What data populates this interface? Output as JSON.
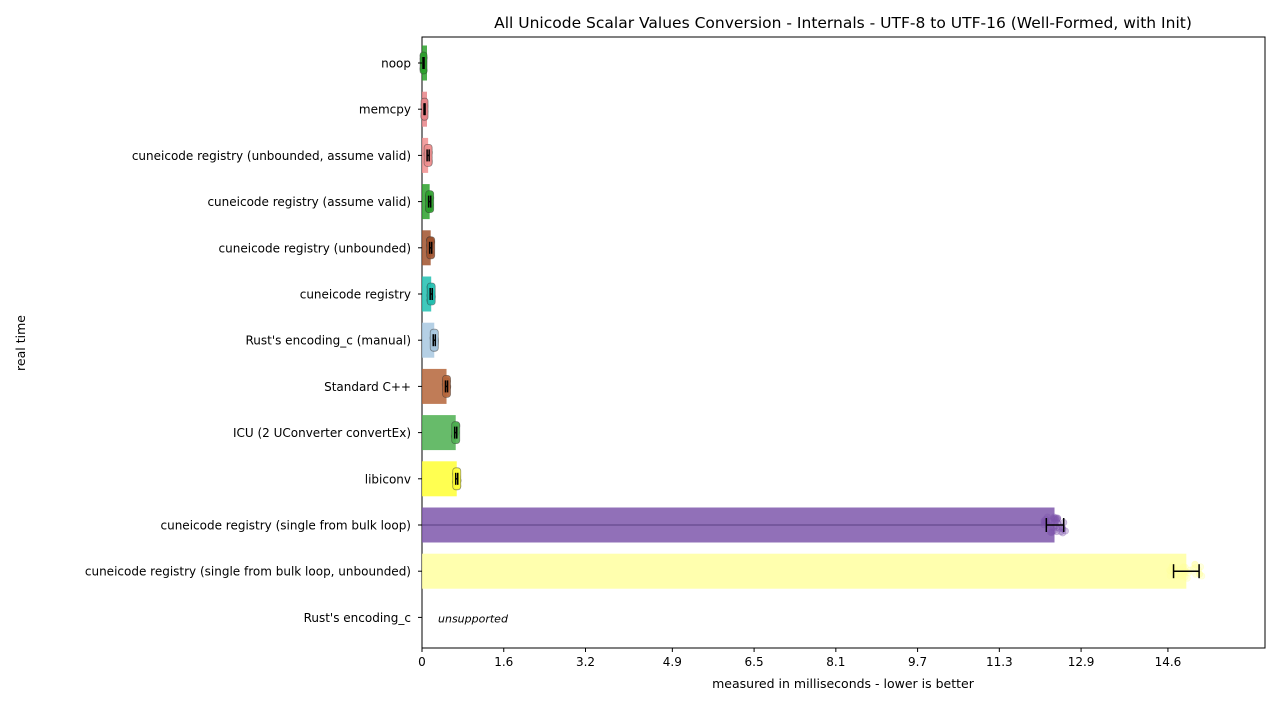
{
  "chart_data": {
    "type": "bar",
    "orientation": "horizontal",
    "title": "All Unicode Scalar Values Conversion - Internals - UTF-8 to UTF-16 (Well-Formed, with Init)",
    "xlabel": "measured in milliseconds - lower is better",
    "ylabel": "real time",
    "xlim": [
      0,
      16.5
    ],
    "xticks": [
      0,
      1.6,
      3.2,
      4.9,
      6.5,
      8.1,
      9.7,
      11.3,
      12.9,
      14.6
    ],
    "xtick_labels": [
      "0",
      "1.6",
      "3.2",
      "4.9",
      "6.5",
      "8.1",
      "9.7",
      "11.3",
      "12.9",
      "14.6"
    ],
    "grid": false,
    "unsupported_label": "unsupported",
    "categories": [
      "noop",
      "memcpy",
      "cuneicode registry (unbounded, assume valid)",
      "cuneicode registry (assume valid)",
      "cuneicode registry (unbounded)",
      "cuneicode registry",
      "Rust's encoding_c (manual)",
      "Standard C++",
      "ICU (2 UConverter convertEx)",
      "libiconv",
      "cuneicode registry (single from bulk loop)",
      "cuneicode registry (single from bulk loop, unbounded)",
      "Rust's encoding_c"
    ],
    "values": [
      0.03,
      0.05,
      0.12,
      0.15,
      0.17,
      0.18,
      0.24,
      0.48,
      0.66,
      0.68,
      12.38,
      14.96,
      null
    ],
    "error_low": [
      0.02,
      0.04,
      0.1,
      0.13,
      0.15,
      0.16,
      0.22,
      0.46,
      0.64,
      0.66,
      12.22,
      14.71
    ],
    "error_high": [
      0.04,
      0.06,
      0.14,
      0.17,
      0.19,
      0.2,
      0.26,
      0.5,
      0.68,
      0.7,
      12.56,
      15.21
    ],
    "colors": [
      "#2ca02c",
      "#e8858a",
      "#f08f8f",
      "#2ca02c",
      "#a0522d",
      "#20c0b0",
      "#a8c8e0",
      "#b5653a",
      "#4caf50",
      "#ffff33",
      "#7e57ab",
      "#ffffa0",
      "#cccccc"
    ],
    "supported": [
      true,
      true,
      true,
      true,
      true,
      true,
      true,
      true,
      true,
      true,
      true,
      true,
      false
    ]
  }
}
